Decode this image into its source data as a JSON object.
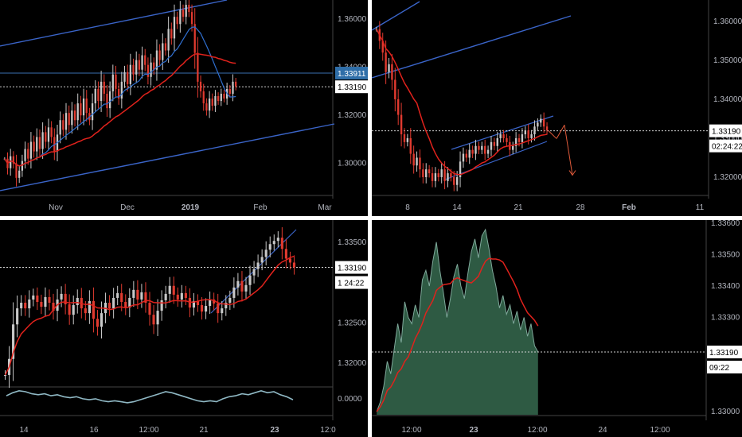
{
  "theme": {
    "background": "#000000",
    "axis_text": "#b2b5be",
    "up": "#c8c8c8",
    "down": "#e03a2f",
    "ma_fast": "#2f6fd0",
    "ma_slow": "#e0221c",
    "trend_line": "#3a64c8",
    "level_line": "#3a6fb0",
    "price_dotted": "#d0d0d0",
    "price_tag_bg": "#ffffff",
    "blue_tag_bg": "#2f6ea8",
    "area_fill": "#2e5a43",
    "area_line": "#7fa99b",
    "oscillator": "#8fb8c4",
    "arrow": "#e05a3a"
  },
  "chart_data": [
    {
      "id": "daily",
      "type": "candlestick",
      "title": "",
      "xlabel": "",
      "ylabel": "",
      "x_ticks": [
        "Nov",
        "Dec",
        "2019",
        "Feb",
        "Mar"
      ],
      "y_ticks": [
        "1.36000",
        "1.34000",
        "1.32000",
        "1.30000"
      ],
      "ylim": [
        1.288,
        1.368
      ],
      "price_tag": "1.33190",
      "level_tag": "1.33911",
      "series": [
        {
          "name": "",
          "kind": "sma_fast"
        },
        {
          "name": "",
          "kind": "sma_slow"
        }
      ],
      "closes": [
        1.302,
        1.298,
        1.303,
        1.3,
        1.294,
        1.297,
        1.301,
        1.306,
        1.302,
        1.309,
        1.305,
        1.311,
        1.306,
        1.313,
        1.309,
        1.315,
        1.311,
        1.305,
        1.312,
        1.318,
        1.314,
        1.321,
        1.316,
        1.322,
        1.318,
        1.325,
        1.32,
        1.327,
        1.321,
        1.318,
        1.325,
        1.331,
        1.326,
        1.334,
        1.329,
        1.323,
        1.33,
        1.337,
        1.331,
        1.327,
        1.334,
        1.338,
        1.333,
        1.341,
        1.337,
        1.343,
        1.339,
        1.345,
        1.341,
        1.336,
        1.342,
        1.339,
        1.347,
        1.343,
        1.35,
        1.347,
        1.356,
        1.352,
        1.361,
        1.358,
        1.364,
        1.361,
        1.366,
        1.363,
        1.358,
        1.346,
        1.334,
        1.33,
        1.325,
        1.322,
        1.327,
        1.324,
        1.328,
        1.326,
        1.329,
        1.327,
        1.331,
        1.329,
        1.334,
        1.332
      ]
    },
    {
      "id": "h4_forecast",
      "type": "candlestick",
      "title": "",
      "x_ticks": [
        "8",
        "14",
        "21",
        "28",
        "Feb",
        "11"
      ],
      "y_ticks": [
        "1.36000",
        "1.35000",
        "1.34000",
        "1.33000",
        "1.32000"
      ],
      "ylim": [
        1.3155,
        1.3655
      ],
      "price_tag": "1.33190",
      "countdown_tag": "02:24:22",
      "closes": [
        1.358,
        1.355,
        1.352,
        1.347,
        1.349,
        1.345,
        1.34,
        1.336,
        1.331,
        1.329,
        1.33,
        1.326,
        1.323,
        1.325,
        1.322,
        1.32,
        1.322,
        1.321,
        1.319,
        1.321,
        1.32,
        1.322,
        1.319,
        1.321,
        1.32,
        1.318,
        1.32,
        1.324,
        1.326,
        1.325,
        1.327,
        1.326,
        1.328,
        1.327,
        1.328,
        1.326,
        1.327,
        1.329,
        1.328,
        1.33,
        1.331,
        1.33,
        1.329,
        1.327,
        1.328,
        1.33,
        1.329,
        1.331,
        1.332,
        1.33,
        1.331,
        1.333,
        1.334,
        1.335,
        1.333,
        1.332
      ],
      "forecast": [
        1.3319,
        1.3299,
        1.3334,
        1.3205
      ]
    },
    {
      "id": "intraday",
      "type": "candlestick",
      "x_ticks": [
        "14",
        "16",
        "12:00",
        "21",
        "23",
        "12:0"
      ],
      "y_ticks": [
        "1.33500",
        "1.32500",
        "1.32000"
      ],
      "ylim": [
        1.318,
        1.337
      ],
      "price_tag": "1.33190",
      "countdown_tag": "1 24:22",
      "closes": [
        1.3185,
        1.3205,
        1.3248,
        1.3268,
        1.3275,
        1.3268,
        1.3279,
        1.3284,
        1.3276,
        1.327,
        1.3282,
        1.3275,
        1.3265,
        1.3279,
        1.3286,
        1.3273,
        1.326,
        1.3272,
        1.3281,
        1.3268,
        1.3262,
        1.3277,
        1.3255,
        1.3245,
        1.3262,
        1.3275,
        1.3268,
        1.3281,
        1.3287,
        1.3276,
        1.3269,
        1.3281,
        1.3291,
        1.3279,
        1.3288,
        1.3275,
        1.326,
        1.3248,
        1.3265,
        1.3278,
        1.3286,
        1.3296,
        1.3285,
        1.3279,
        1.3287,
        1.3281,
        1.3269,
        1.3277,
        1.3272,
        1.3264,
        1.3271,
        1.3279,
        1.3274,
        1.3262,
        1.3268,
        1.3275,
        1.3281,
        1.3294,
        1.3302,
        1.3289,
        1.3297,
        1.3309,
        1.3317,
        1.3325,
        1.3332,
        1.3341,
        1.3348,
        1.3352,
        1.3356,
        1.3342,
        1.333,
        1.3325,
        1.3319
      ],
      "oscillator": {
        "ylim": [
          -0.0016,
          0.0011
        ],
        "y_ticks": [
          "0.0000"
        ],
        "values": [
          0.0003,
          0.0006,
          0.0008,
          0.0007,
          0.0005,
          0.0004,
          0.0005,
          0.0003,
          0.0004,
          0.0002,
          0.0001,
          0.0002,
          0.0,
          -0.0001,
          0.0,
          -0.0002,
          -0.0003,
          -0.0002,
          -0.0003,
          -0.0004,
          -0.0003,
          -0.0001,
          0.0001,
          0.0003,
          0.0005,
          0.0007,
          0.0006,
          0.0004,
          0.0002,
          0.0,
          -0.0002,
          -0.0003,
          -0.0002,
          -0.0003,
          0.0,
          0.0002,
          0.0003,
          0.0005,
          0.0004,
          0.0006,
          0.0008,
          0.0006,
          0.0007,
          0.0004,
          0.0002,
          -0.0001
        ]
      }
    },
    {
      "id": "minute_area",
      "type": "area",
      "x_ticks": [
        "12:00",
        "23",
        "12:00",
        "24",
        "12:00"
      ],
      "y_ticks": [
        "1.33600",
        "1.33500",
        "1.33400",
        "1.33300",
        "1.33000"
      ],
      "ylim": [
        1.3299,
        1.336
      ],
      "price_tag": "1.33190",
      "countdown_tag": "09:22",
      "values": [
        1.33,
        1.3303,
        1.3308,
        1.3316,
        1.3312,
        1.332,
        1.3328,
        1.3322,
        1.3335,
        1.333,
        1.3328,
        1.3334,
        1.333,
        1.3342,
        1.3345,
        1.334,
        1.3348,
        1.3354,
        1.3345,
        1.3338,
        1.333,
        1.3336,
        1.3343,
        1.3347,
        1.334,
        1.3336,
        1.3344,
        1.3351,
        1.3355,
        1.3349,
        1.3356,
        1.3358,
        1.3352,
        1.3345,
        1.334,
        1.3333,
        1.3337,
        1.3331,
        1.3334,
        1.3328,
        1.3332,
        1.3326,
        1.333,
        1.3324,
        1.3328,
        1.3321,
        1.3319
      ]
    }
  ]
}
